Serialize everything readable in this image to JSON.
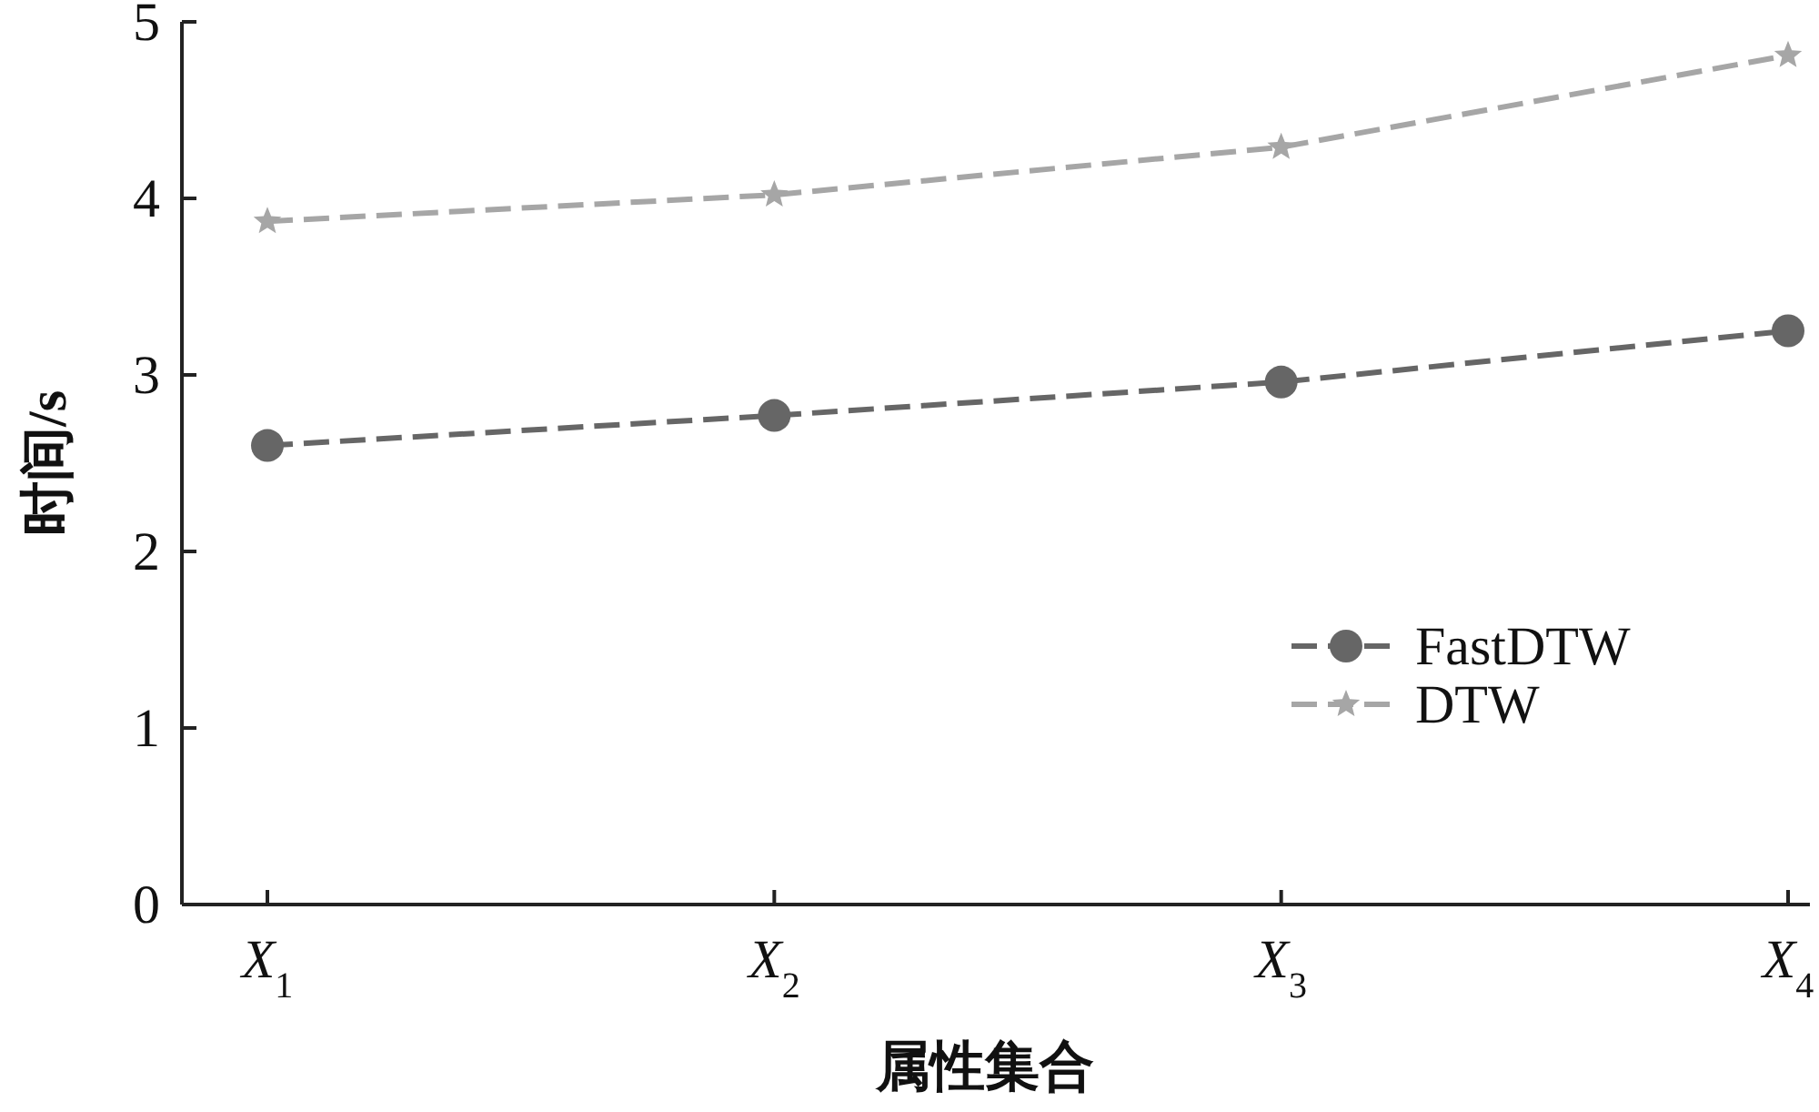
{
  "chart_data": {
    "type": "line",
    "xlabel": "属性集合",
    "ylabel": "时间/s",
    "categories": [
      "X$_{1}$",
      "X$_{2}$",
      "X$_{3}$",
      "X$_{4}$"
    ],
    "ylim": [
      0,
      5
    ],
    "yticks": [
      0,
      1,
      2,
      3,
      4,
      5
    ],
    "legend": "right",
    "series": [
      {
        "name": "FastDTW",
        "color": "#666666",
        "marker": "circle",
        "line_style": "dashed",
        "values": [
          2.6,
          2.77,
          2.96,
          3.25
        ]
      },
      {
        "name": "DTW",
        "color": "#a6a6a6",
        "marker": "star",
        "line_style": "dashed",
        "values": [
          3.87,
          4.02,
          4.29,
          4.81
        ]
      }
    ]
  }
}
